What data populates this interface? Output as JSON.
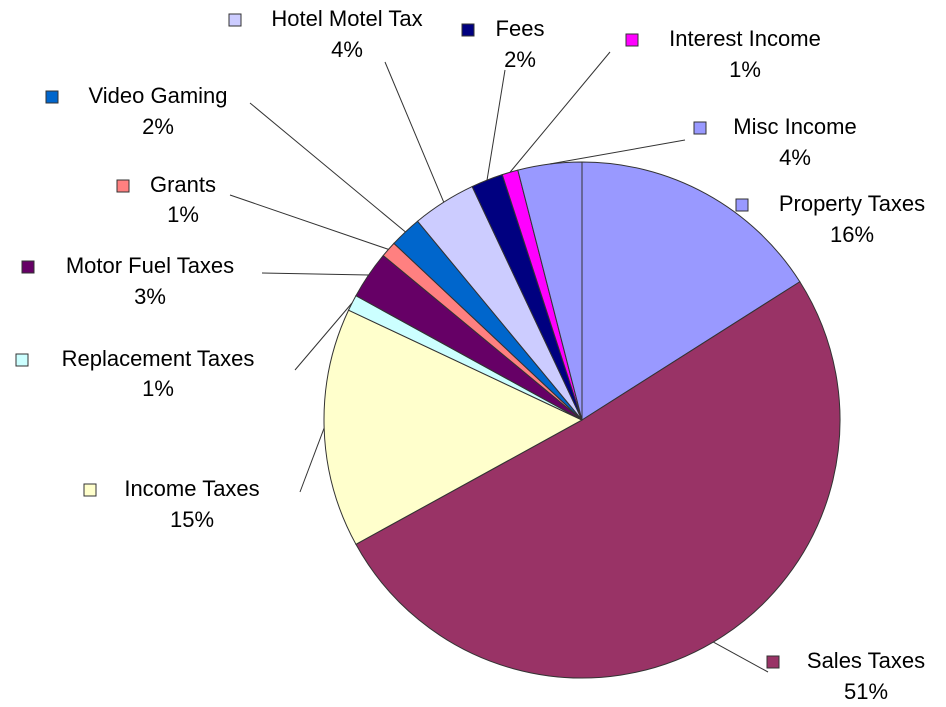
{
  "chart_data": {
    "type": "pie",
    "categories": [
      "Property Taxes",
      "Sales Taxes",
      "Income Taxes",
      "Replacement Taxes",
      "Motor Fuel Taxes",
      "Grants",
      "Video Gaming",
      "Hotel Motel Tax",
      "Fees",
      "Interest Income",
      "Misc Income"
    ],
    "values": [
      16,
      51,
      15,
      1,
      3,
      1,
      2,
      4,
      2,
      1,
      4
    ],
    "value_labels": [
      "16%",
      "51%",
      "15%",
      "1%",
      "3%",
      "1%",
      "2%",
      "4%",
      "2%",
      "1%",
      "4%"
    ],
    "colors": [
      "#9999ff",
      "#993366",
      "#ffffcc",
      "#ccffff",
      "#660066",
      "#ff8080",
      "#0066cc",
      "#ccccff",
      "#000080",
      "#ff00ff",
      "#9999ff"
    ]
  }
}
